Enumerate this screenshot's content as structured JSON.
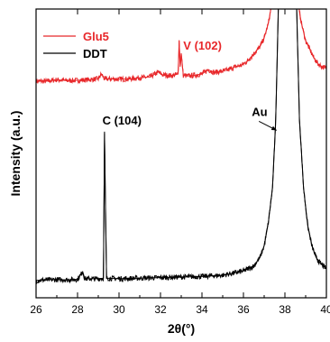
{
  "chart_data": {
    "type": "line",
    "title": "",
    "xlabel": "2θ(°)",
    "ylabel": "Intensity (a.u.)",
    "xlim": [
      26,
      40
    ],
    "x_ticks": [
      "26",
      "28",
      "30",
      "32",
      "34",
      "36",
      "38",
      "40"
    ],
    "y_ticks_labeled": false,
    "grid": false,
    "legend_position": "top-left",
    "series": [
      {
        "name": "Glu5",
        "color": "#e8282b",
        "points": [
          [
            26.0,
            0.75
          ],
          [
            26.5,
            0.75
          ],
          [
            27.0,
            0.755
          ],
          [
            27.5,
            0.752
          ],
          [
            28.0,
            0.753
          ],
          [
            28.5,
            0.755
          ],
          [
            29.0,
            0.758
          ],
          [
            29.15,
            0.775
          ],
          [
            29.3,
            0.758
          ],
          [
            30.0,
            0.757
          ],
          [
            30.5,
            0.758
          ],
          [
            31.0,
            0.762
          ],
          [
            31.5,
            0.765
          ],
          [
            31.9,
            0.782
          ],
          [
            32.1,
            0.772
          ],
          [
            32.4,
            0.77
          ],
          [
            32.6,
            0.77
          ],
          [
            32.85,
            0.775
          ],
          [
            32.9,
            0.89
          ],
          [
            32.95,
            0.8
          ],
          [
            33.0,
            0.845
          ],
          [
            33.1,
            0.77
          ],
          [
            33.3,
            0.768
          ],
          [
            33.6,
            0.77
          ],
          [
            34.0,
            0.775
          ],
          [
            34.3,
            0.79
          ],
          [
            34.6,
            0.78
          ],
          [
            35.0,
            0.785
          ],
          [
            35.3,
            0.79
          ],
          [
            35.6,
            0.8
          ],
          [
            35.9,
            0.805
          ],
          [
            36.2,
            0.82
          ],
          [
            36.5,
            0.845
          ],
          [
            36.8,
            0.87
          ],
          [
            37.0,
            0.9
          ],
          [
            37.2,
            0.95
          ],
          [
            37.3,
            0.99
          ],
          [
            37.4,
            1.05
          ],
          [
            38.6,
            1.05
          ],
          [
            38.7,
            0.99
          ],
          [
            38.8,
            0.95
          ],
          [
            39.0,
            0.89
          ],
          [
            39.2,
            0.86
          ],
          [
            39.4,
            0.83
          ],
          [
            39.6,
            0.81
          ],
          [
            39.8,
            0.8
          ],
          [
            40.0,
            0.795
          ]
        ]
      },
      {
        "name": "DDT",
        "color": "#000000",
        "points": [
          [
            26.0,
            0.06
          ],
          [
            26.5,
            0.062
          ],
          [
            27.0,
            0.063
          ],
          [
            27.5,
            0.062
          ],
          [
            28.0,
            0.064
          ],
          [
            28.25,
            0.09
          ],
          [
            28.35,
            0.066
          ],
          [
            29.0,
            0.066
          ],
          [
            29.25,
            0.068
          ],
          [
            29.3,
            0.57
          ],
          [
            29.35,
            0.3
          ],
          [
            29.4,
            0.068
          ],
          [
            30.0,
            0.066
          ],
          [
            31.0,
            0.068
          ],
          [
            32.0,
            0.07
          ],
          [
            33.0,
            0.072
          ],
          [
            34.0,
            0.074
          ],
          [
            35.0,
            0.078
          ],
          [
            35.5,
            0.085
          ],
          [
            36.0,
            0.093
          ],
          [
            36.5,
            0.11
          ],
          [
            36.8,
            0.14
          ],
          [
            37.0,
            0.18
          ],
          [
            37.2,
            0.26
          ],
          [
            37.4,
            0.38
          ],
          [
            37.55,
            0.6
          ],
          [
            37.7,
            1.05
          ],
          [
            38.55,
            1.05
          ],
          [
            38.7,
            0.62
          ],
          [
            38.9,
            0.38
          ],
          [
            39.1,
            0.25
          ],
          [
            39.3,
            0.18
          ],
          [
            39.5,
            0.14
          ],
          [
            39.7,
            0.12
          ],
          [
            40.0,
            0.1
          ]
        ]
      }
    ],
    "annotations": [
      {
        "text": "V (102)",
        "x": 33.1,
        "y": 0.86,
        "color": "#e8282b"
      },
      {
        "text": "C (104)",
        "x": 29.2,
        "y": 0.6,
        "color": "#000000"
      },
      {
        "text": "Au",
        "x": 36.4,
        "y": 0.63,
        "color": "#000000",
        "arrow_to": [
          37.6,
          0.58
        ]
      }
    ]
  }
}
